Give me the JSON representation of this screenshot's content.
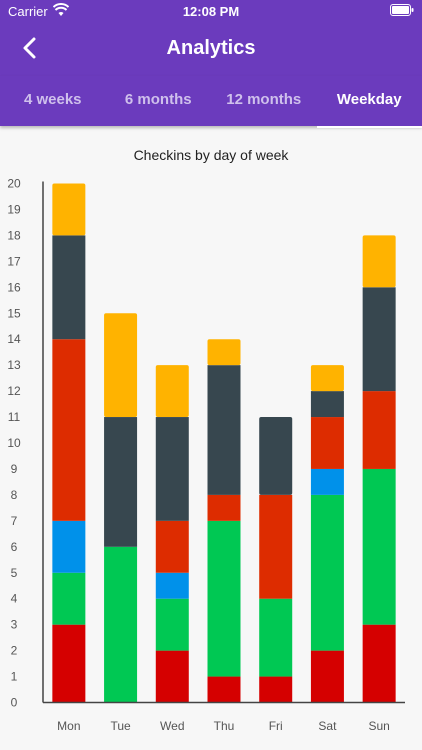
{
  "status": {
    "carrier": "Carrier",
    "time": "12:08 PM"
  },
  "header": {
    "title": "Analytics"
  },
  "tabs": [
    {
      "label": "4 weeks",
      "active": false
    },
    {
      "label": "6 months",
      "active": false
    },
    {
      "label": "12 months",
      "active": false
    },
    {
      "label": "Weekday",
      "active": true
    }
  ],
  "icons": {
    "back": "chevron-left-icon",
    "wifi": "wifi-icon",
    "battery": "battery-icon"
  },
  "colors": {
    "brand": "#6b3bbd",
    "series": [
      "#d50000",
      "#00c853",
      "#0091ea",
      "#dd2c00",
      "#37474f",
      "#ffb300"
    ]
  },
  "chart_data": {
    "type": "bar",
    "stacked": true,
    "title": "Checkins by day of week",
    "categories": [
      "Mon",
      "Tue",
      "Wed",
      "Thu",
      "Fri",
      "Sat",
      "Sun"
    ],
    "ylim": [
      0,
      20
    ],
    "yticks": [
      0,
      1,
      2,
      3,
      4,
      5,
      6,
      7,
      8,
      9,
      10,
      11,
      12,
      13,
      14,
      15,
      16,
      17,
      18,
      19,
      20
    ],
    "grid": false,
    "series": [
      {
        "color": "#d50000",
        "values": [
          3,
          0,
          2,
          1,
          1,
          2,
          3
        ]
      },
      {
        "color": "#00c853",
        "values": [
          2,
          6,
          2,
          6,
          3,
          6,
          6
        ]
      },
      {
        "color": "#0091ea",
        "values": [
          2,
          0,
          1,
          0,
          0,
          1,
          0
        ]
      },
      {
        "color": "#dd2c00",
        "values": [
          7,
          0,
          2,
          1,
          4,
          2,
          3
        ]
      },
      {
        "color": "#37474f",
        "values": [
          4,
          5,
          4,
          5,
          3,
          1,
          4
        ]
      },
      {
        "color": "#ffb300",
        "values": [
          2,
          4,
          2,
          1,
          0,
          1,
          2
        ]
      }
    ]
  }
}
